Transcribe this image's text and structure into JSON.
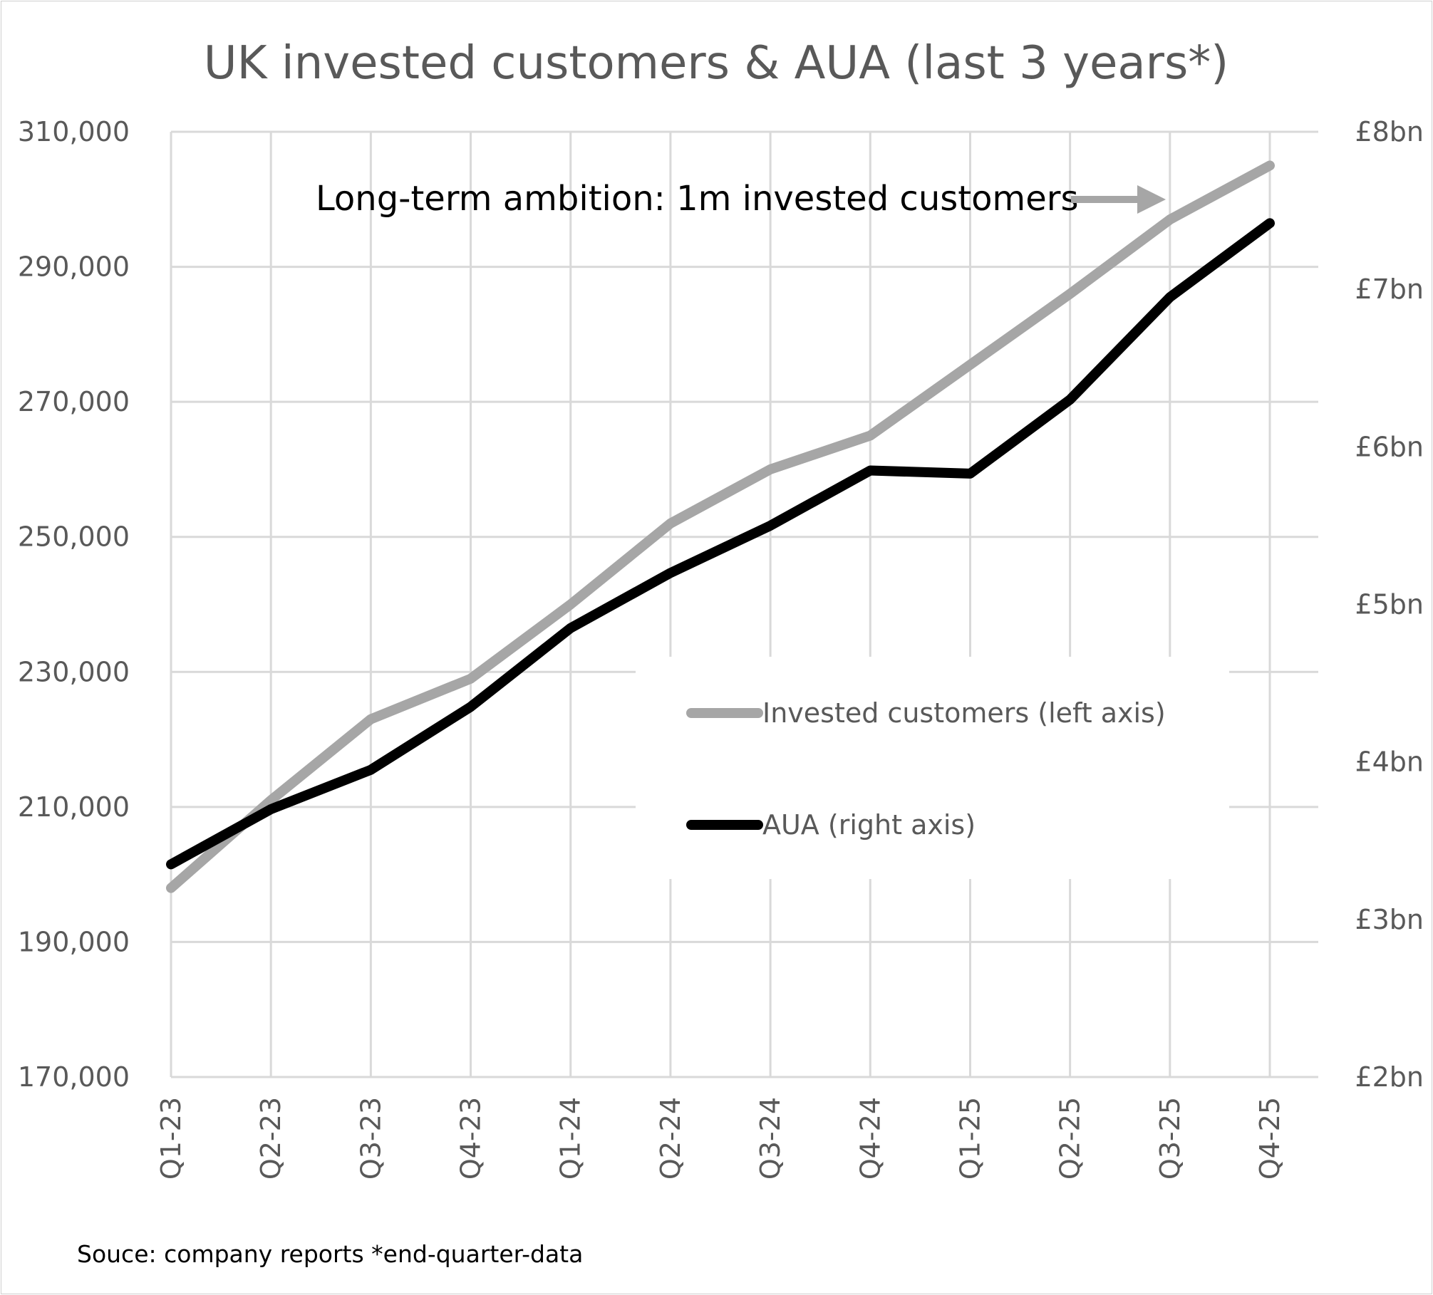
{
  "chart_data": {
    "type": "line",
    "title": "UK invested customers & AUA (last 3 years*)",
    "categories": [
      "Q1-23",
      "Q2-23",
      "Q3-23",
      "Q4-23",
      "Q1-24",
      "Q2-24",
      "Q3-24",
      "Q4-24",
      "Q1-25",
      "Q2-25",
      "Q3-25",
      "Q4-25"
    ],
    "left_axis": {
      "range": [
        170000,
        310000
      ],
      "ticks": [
        170000,
        190000,
        210000,
        230000,
        250000,
        270000,
        290000,
        310000
      ],
      "tick_labels": [
        "170,000",
        "190,000",
        "210,000",
        "230,000",
        "250,000",
        "270,000",
        "290,000",
        "310,000"
      ]
    },
    "right_axis": {
      "range": [
        2,
        8
      ],
      "ticks": [
        2,
        3,
        4,
        5,
        6,
        7,
        8
      ],
      "tick_labels": [
        "£2bn",
        "£3bn",
        "£4bn",
        "£5bn",
        "£6bn",
        "£7bn",
        "£8bn"
      ]
    },
    "series": [
      {
        "name": "Invested customers (left axis)",
        "axis": "left",
        "color": "#a6a6a6",
        "values": [
          198000,
          211000,
          223000,
          229000,
          240000,
          252000,
          260000,
          265000,
          275500,
          286000,
          297000,
          305000
        ]
      },
      {
        "name": "AUA (right axis)",
        "axis": "right",
        "color": "#000000",
        "values": [
          3.35,
          3.7,
          3.95,
          4.35,
          4.85,
          5.2,
          5.5,
          5.85,
          5.83,
          6.3,
          6.95,
          7.42
        ]
      }
    ],
    "annotation": "Long-term ambition: 1m invested customers",
    "annotation_color": "#a6a6a6",
    "legend_position": "center-right",
    "grid": true
  },
  "footer": {
    "source": "Souce: company reports  *end-quarter-data"
  }
}
